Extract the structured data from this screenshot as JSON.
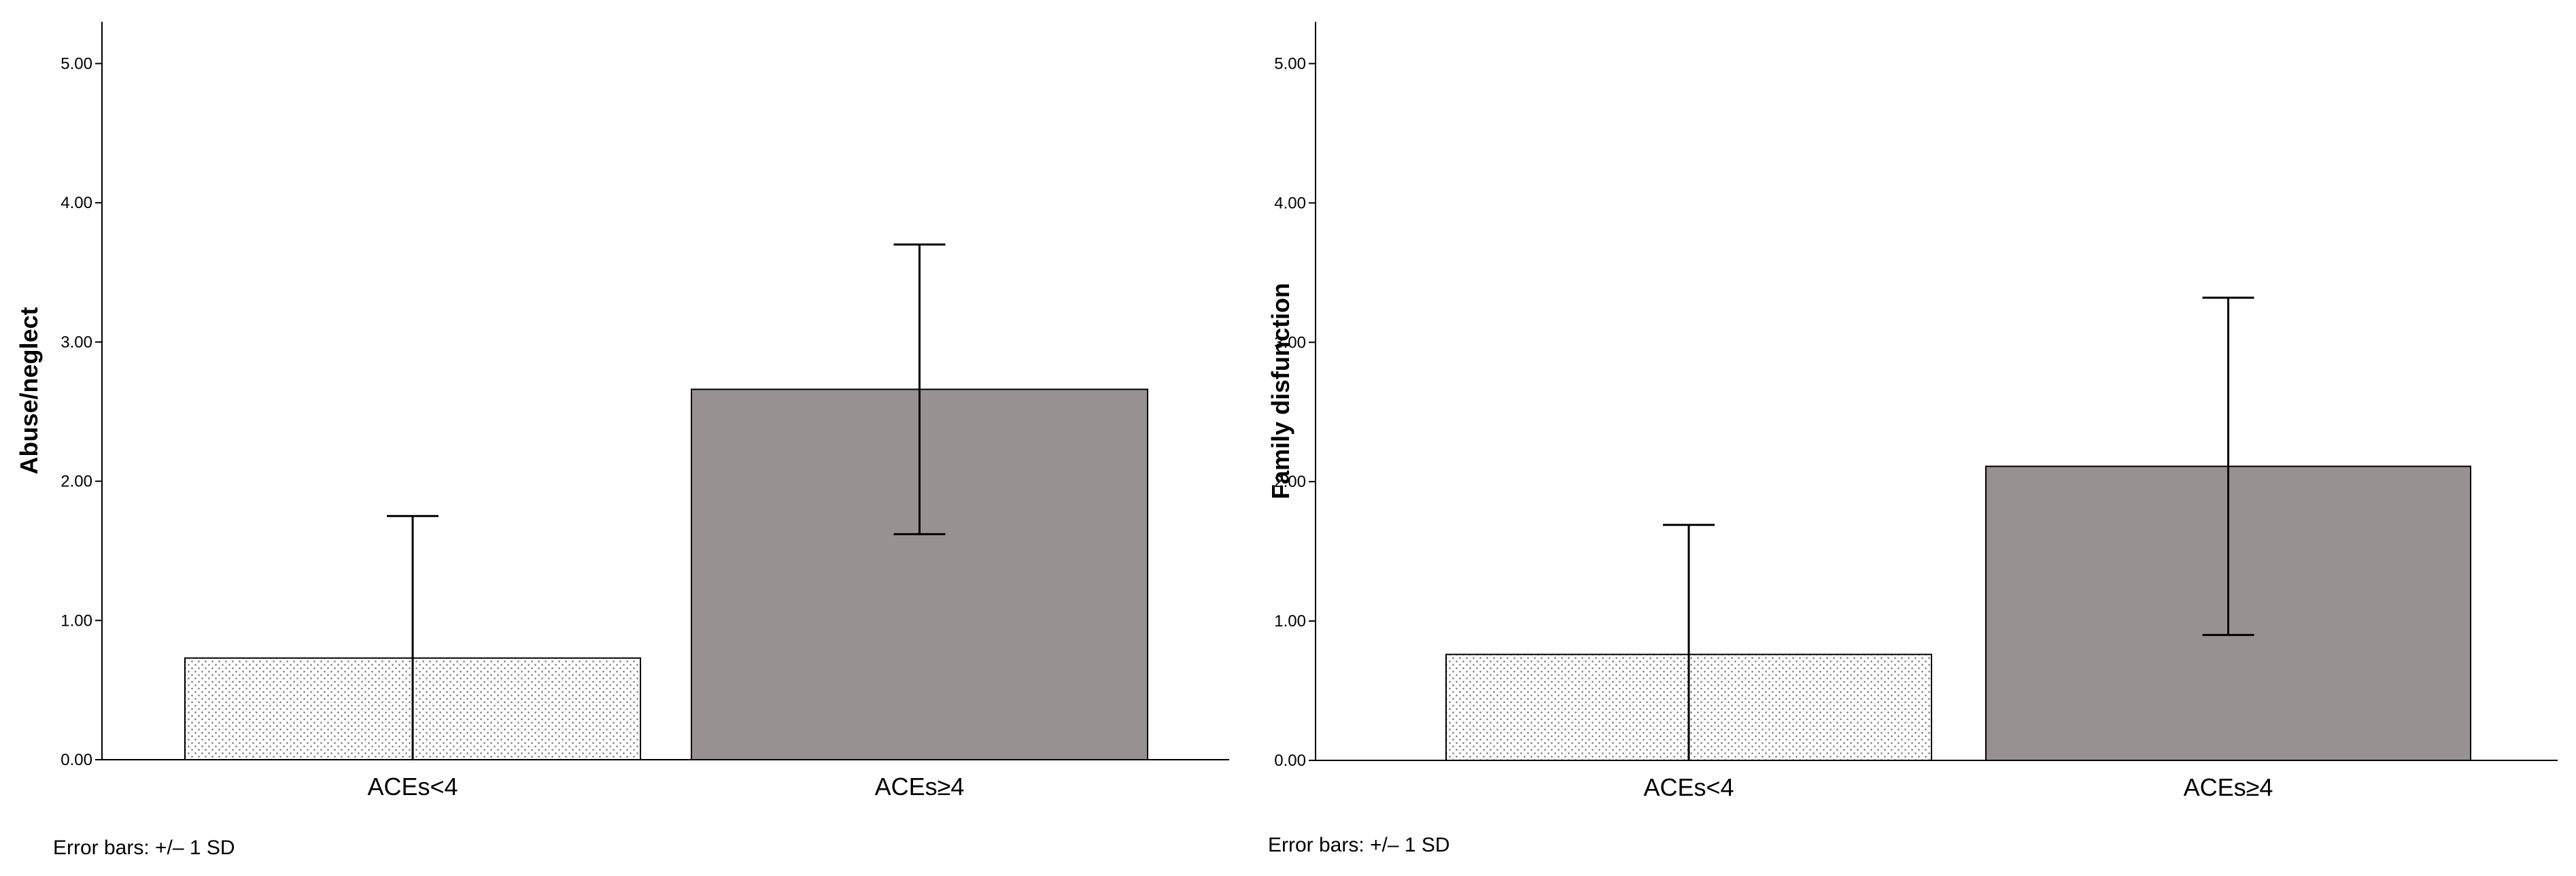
{
  "charts": [
    {
      "type": "bar",
      "categories": [
        "ACEs<4",
        "ACEs≥4"
      ],
      "values": [
        0.73,
        2.66
      ],
      "sd": [
        1.02,
        1.04
      ],
      "ylabel": "Abuse/neglect",
      "xlabel": "",
      "ylim": [
        0,
        5.3
      ],
      "yticks": [
        0,
        1,
        2,
        3,
        4,
        5
      ],
      "ytick_labels": [
        "0.00",
        "1.00",
        "2.00",
        "3.00",
        "4.00",
        "5.00"
      ],
      "footnote": "Error bars: +/– 1 SD",
      "bar_styles": [
        "dotted",
        "solid"
      ],
      "colors": {
        "bar_fill": "#979291",
        "dotted_fill": "#ffffff",
        "dot_color": "#777777",
        "stroke": "#000000"
      }
    },
    {
      "type": "bar",
      "categories": [
        "ACEs<4",
        "ACEs≥4"
      ],
      "values": [
        0.76,
        2.11
      ],
      "sd": [
        0.93,
        1.21
      ],
      "ylabel": "Family disfunction",
      "xlabel": "",
      "ylim": [
        0,
        5.3
      ],
      "yticks": [
        0,
        1,
        2,
        3,
        4,
        5
      ],
      "ytick_labels": [
        "0.00",
        "1.00",
        "2.00",
        "3.00",
        "4.00",
        "5.00"
      ],
      "footnote": "Error bars: +/– 1 SD",
      "bar_styles": [
        "dotted",
        "solid"
      ],
      "colors": {
        "bar_fill": "#979291",
        "dotted_fill": "#ffffff",
        "dot_color": "#777777",
        "stroke": "#000000"
      }
    }
  ]
}
